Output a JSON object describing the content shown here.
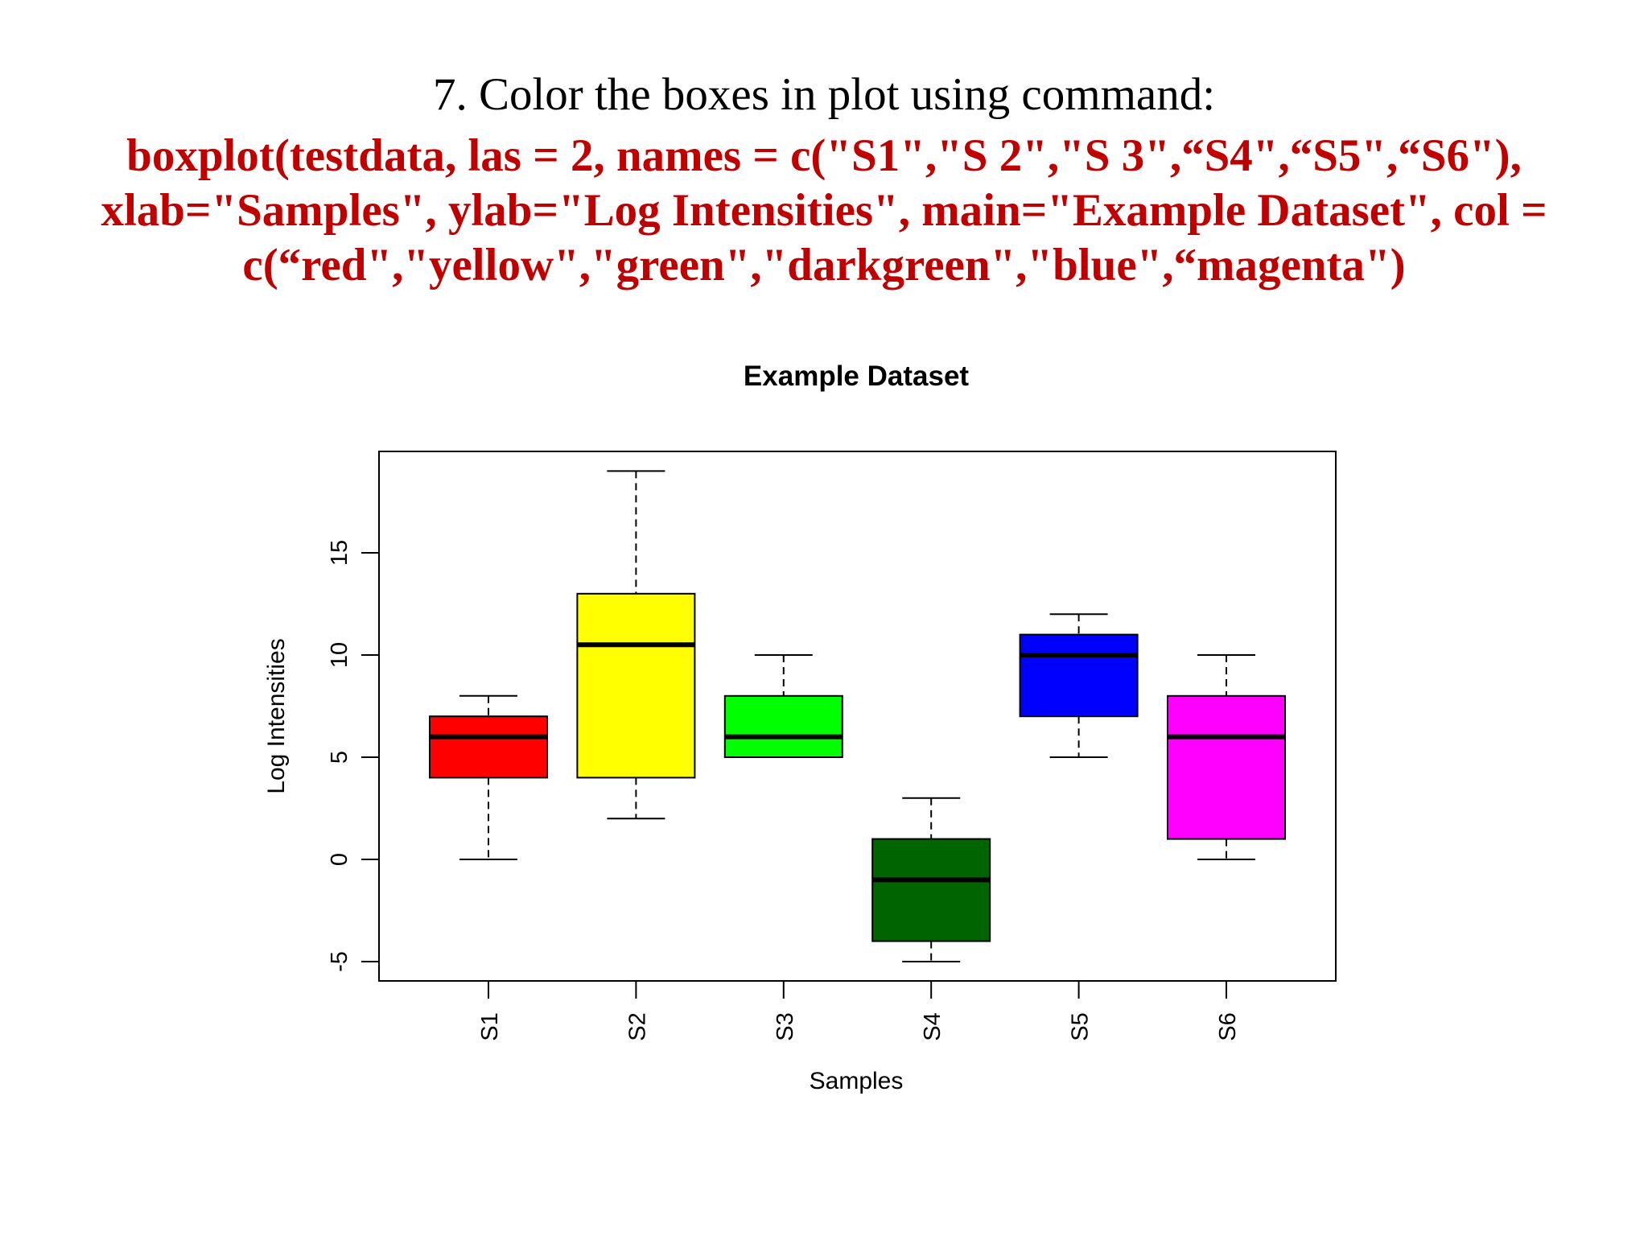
{
  "slide": {
    "heading": "7. Color the boxes in plot using command:",
    "command_lines": [
      "boxplot(testdata, las = 2, names = c(\"S1\",\"S 2\",\"S 3\",“S4\",“S5\",“S6\"),",
      "xlab=\"Samples\", ylab=\"Log Intensities\", main=\"Example Dataset\", col =",
      "c(“red\",\"yellow\",\"green\",\"darkgreen\",\"blue\",“magenta\")"
    ]
  },
  "chart_data": {
    "type": "boxplot",
    "title": "Example Dataset",
    "xlabel": "Samples",
    "ylabel": "Log Intensities",
    "categories": [
      "S1",
      "S2",
      "S3",
      "S4",
      "S5",
      "S6"
    ],
    "ylim": [
      -6,
      20
    ],
    "yticks": [
      -5,
      0,
      5,
      10,
      15
    ],
    "grid": false,
    "boxes": [
      {
        "name": "S1",
        "min": 0,
        "q1": 4,
        "median": 6,
        "q3": 7,
        "max": 8,
        "color": "#ff0000"
      },
      {
        "name": "S2",
        "min": 2,
        "q1": 4,
        "median": 10.5,
        "q3": 13,
        "max": 19,
        "color": "#ffff00"
      },
      {
        "name": "S3",
        "min": 5,
        "q1": 5,
        "median": 6,
        "q3": 8,
        "max": 10,
        "color": "#00ff00"
      },
      {
        "name": "S4",
        "min": -5,
        "q1": -4,
        "median": -1,
        "q3": 1,
        "max": 3,
        "color": "#006400"
      },
      {
        "name": "S5",
        "min": 5,
        "q1": 7,
        "median": 10,
        "q3": 11,
        "max": 12,
        "color": "#0000ff"
      },
      {
        "name": "S6",
        "min": 0,
        "q1": 1,
        "median": 6,
        "q3": 8,
        "max": 10,
        "color": "#ff00ff"
      }
    ]
  }
}
